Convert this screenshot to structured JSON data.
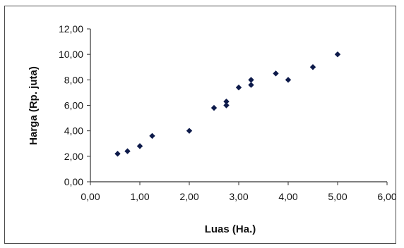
{
  "chart_data": {
    "type": "scatter",
    "xlabel": "Luas (Ha.)",
    "ylabel": "Harga (Rp. juta)",
    "xlim": [
      0,
      6
    ],
    "ylim": [
      0,
      12
    ],
    "x_ticks": [
      "0,00",
      "1,00",
      "2,00",
      "3,00",
      "4,00",
      "5,00",
      "6,00"
    ],
    "y_ticks": [
      "0,00",
      "2,00",
      "4,00",
      "6,00",
      "8,00",
      "10,00",
      "12,00"
    ],
    "grid": false,
    "legend": "none",
    "marker_color": "#0d1a4a",
    "points": [
      {
        "x": 0.55,
        "y": 2.2
      },
      {
        "x": 0.75,
        "y": 2.4
      },
      {
        "x": 1.0,
        "y": 2.8
      },
      {
        "x": 1.25,
        "y": 3.6
      },
      {
        "x": 2.0,
        "y": 4.0
      },
      {
        "x": 2.5,
        "y": 5.8
      },
      {
        "x": 2.75,
        "y": 6.0
      },
      {
        "x": 2.75,
        "y": 6.3
      },
      {
        "x": 3.0,
        "y": 7.4
      },
      {
        "x": 3.25,
        "y": 7.6
      },
      {
        "x": 3.25,
        "y": 8.0
      },
      {
        "x": 3.75,
        "y": 8.5
      },
      {
        "x": 4.0,
        "y": 8.0
      },
      {
        "x": 4.5,
        "y": 9.0
      },
      {
        "x": 5.0,
        "y": 10.0
      }
    ]
  }
}
